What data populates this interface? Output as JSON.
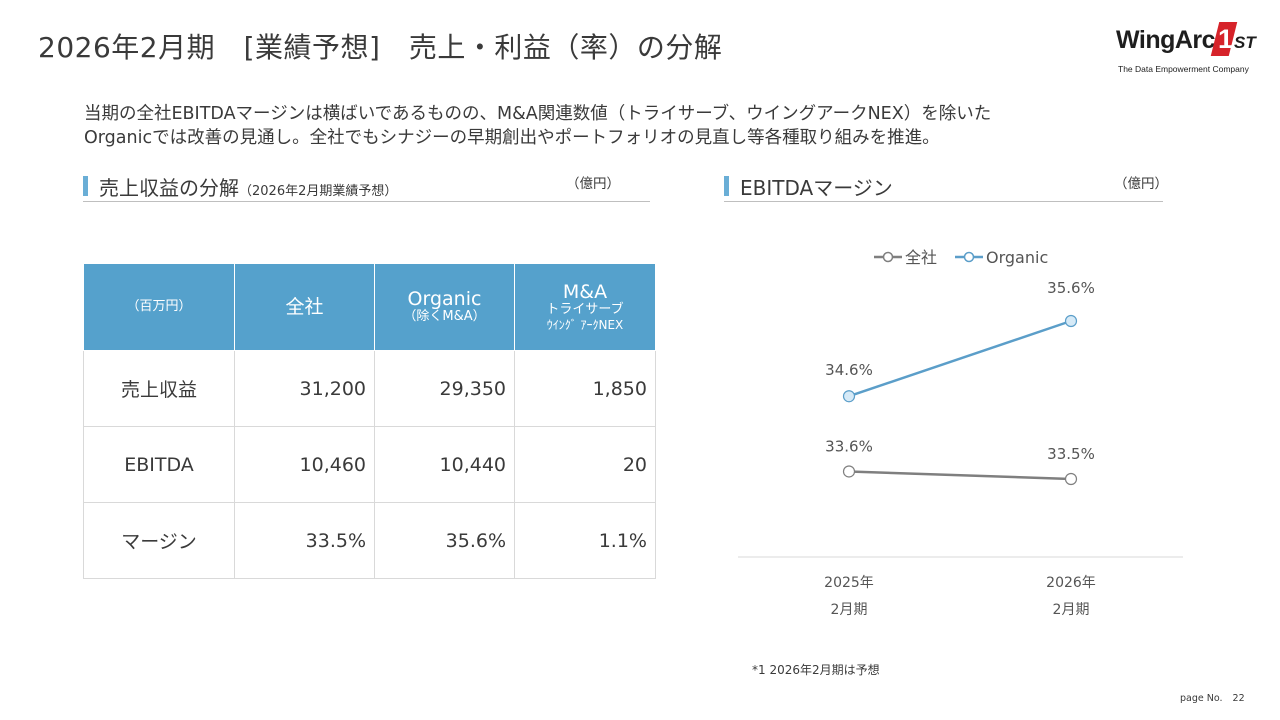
{
  "page": {
    "title": "2026年2月期　[業績予想]　売上・利益（率）の分解",
    "lead_line1": "当期の全社EBITDAマージンは横ばいであるものの、M&A関連数値（トライサーブ、ウイングアークNEX）を除いた",
    "lead_line2": "Organicでは改善の見通し。全社でもシナジーの早期創出やポートフォリオの見直し等各種取り組みを推進。",
    "footnote": "*1 2026年2月期は予想",
    "page_no_label": "page No.",
    "page_no": "22"
  },
  "logo": {
    "main": "WingArc",
    "one": "1",
    "st": "ST",
    "tagline": "The Data Empowerment Company"
  },
  "colors": {
    "accent_blue": "#55a1cc",
    "organic_line": "#5b9ec9",
    "total_line": "#7f7f7f",
    "marker_fill": "#d6eaf7"
  },
  "left_section": {
    "title": "売上収益の分解",
    "subtitle": "（2026年2月期業績予想）",
    "unit": "（億円）"
  },
  "right_section": {
    "title": "EBITDAマージン",
    "unit": "（億円）"
  },
  "table": {
    "headers": {
      "unit": "（百万円）",
      "total": "全社",
      "organic": "Organic",
      "organic_sub": "（除くM&A）",
      "ma": "M&A",
      "ma_sub1": "トライサーブ",
      "ma_sub2": "ｳｲﾝｸﾞ ｱｰｸNEX"
    },
    "rows": [
      {
        "label": "売上収益",
        "total": "31,200",
        "organic": "29,350",
        "ma": "1,850"
      },
      {
        "label": "EBITDA",
        "total": "10,460",
        "organic": "10,440",
        "ma": "20"
      },
      {
        "label": "マージン",
        "total": "33.5%",
        "organic": "35.6%",
        "ma": "1.1%"
      }
    ]
  },
  "chart_data": {
    "type": "line",
    "categories": [
      "2025年\n2月期",
      "2026年\n2月期"
    ],
    "category_lines": [
      [
        "2025年",
        "2月期"
      ],
      [
        "2026年",
        "2月期"
      ]
    ],
    "series": [
      {
        "name": "全社",
        "values": [
          33.6,
          33.5
        ],
        "labels": [
          "33.6%",
          "33.5%"
        ],
        "color": "#7f7f7f"
      },
      {
        "name": "Organic",
        "values": [
          34.6,
          35.6
        ],
        "labels": [
          "34.6%",
          "35.6%"
        ],
        "color": "#5b9ec9"
      }
    ],
    "value_unit": "%",
    "legend_position": "top",
    "grid": false
  }
}
